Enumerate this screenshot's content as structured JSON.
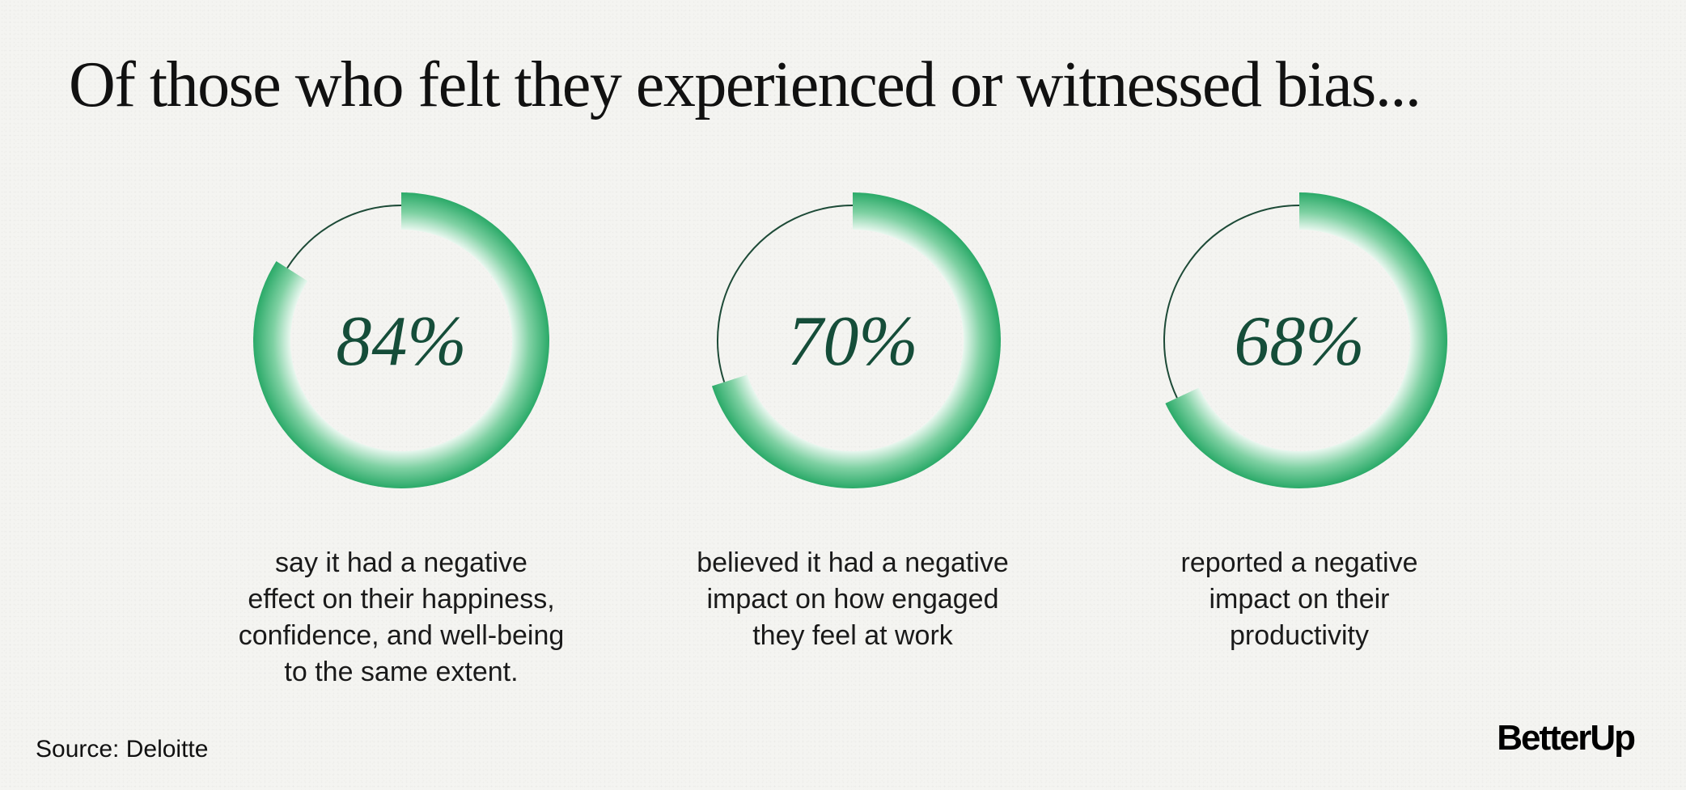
{
  "title": "Of those who felt they experienced or witnessed bias...",
  "source": "Source: Deloitte",
  "brand": "BetterUp",
  "colors": {
    "ring_fill": "#27a866",
    "ring_fill_inner": "#ffffff",
    "track": "#1d4a37",
    "percent_text": "#154d39"
  },
  "chart_data": [
    {
      "type": "donut",
      "value": 84,
      "label": "84%",
      "caption": [
        "say it had a negative",
        "effect on their happiness,",
        "confidence, and well-being",
        "to the same extent."
      ]
    },
    {
      "type": "donut",
      "value": 70,
      "label": "70%",
      "caption": [
        "believed it had a negative",
        "impact on how engaged",
        "they feel at work"
      ]
    },
    {
      "type": "donut",
      "value": 68,
      "label": "68%",
      "caption": [
        "reported a negative",
        "impact on their",
        "productivity"
      ]
    }
  ]
}
